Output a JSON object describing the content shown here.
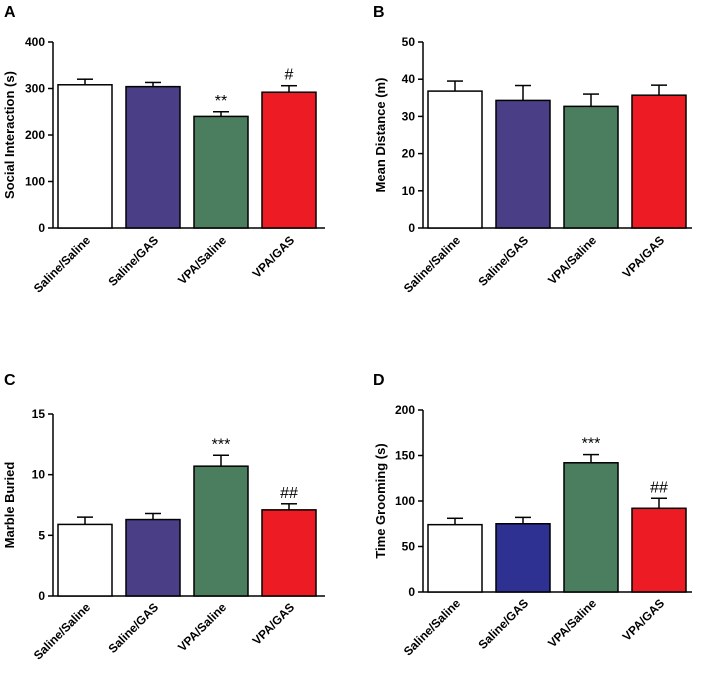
{
  "chart_data": [
    {
      "panel": "A",
      "type": "bar",
      "ylabel": "Social Interaction (s)",
      "xlabel": "",
      "ylim": [
        0,
        400
      ],
      "yticks": [
        0,
        100,
        200,
        300,
        400
      ],
      "categories": [
        "Saline/Saline",
        "Saline/GAS",
        "VPA/Saline",
        "VPA/GAS"
      ],
      "values": [
        308,
        304,
        240,
        292
      ],
      "errors": [
        12,
        9,
        10,
        14
      ],
      "annotations": [
        "",
        "",
        "**",
        "#"
      ],
      "colors": [
        "#ffffff",
        "#4a3f86",
        "#4b7d5f",
        "#ed1c24"
      ]
    },
    {
      "panel": "B",
      "type": "bar",
      "ylabel": "Mean Distance (m)",
      "xlabel": "",
      "ylim": [
        0,
        50
      ],
      "yticks": [
        0,
        10,
        20,
        30,
        40,
        50
      ],
      "categories": [
        "Saline/Saline",
        "Saline/GAS",
        "VPA/Saline",
        "VPA/GAS"
      ],
      "values": [
        36.8,
        34.3,
        32.7,
        35.7
      ],
      "errors": [
        2.7,
        4.0,
        3.3,
        2.7
      ],
      "annotations": [
        "",
        "",
        "",
        ""
      ],
      "colors": [
        "#ffffff",
        "#4a3f86",
        "#4b7d5f",
        "#ed1c24"
      ]
    },
    {
      "panel": "C",
      "type": "bar",
      "ylabel": "Marble Buried",
      "xlabel": "",
      "ylim": [
        0,
        15
      ],
      "yticks": [
        0,
        5,
        10,
        15
      ],
      "categories": [
        "Saline/Saline",
        "Saline/GAS",
        "VPA/Saline",
        "VPA/GAS"
      ],
      "values": [
        5.9,
        6.3,
        10.7,
        7.1
      ],
      "errors": [
        0.6,
        0.5,
        0.9,
        0.5
      ],
      "annotations": [
        "",
        "",
        "***",
        "##"
      ],
      "colors": [
        "#ffffff",
        "#4a3f86",
        "#4b7d5f",
        "#ed1c24"
      ]
    },
    {
      "panel": "D",
      "type": "bar",
      "ylabel": "Time Grooming (s)",
      "xlabel": "",
      "ylim": [
        0,
        200
      ],
      "yticks": [
        0,
        50,
        100,
        150,
        200
      ],
      "categories": [
        "Saline/Saline",
        "Saline/GAS",
        "VPA/Saline",
        "VPA/GAS"
      ],
      "values": [
        74,
        75,
        142,
        92
      ],
      "errors": [
        7,
        7,
        9,
        11
      ],
      "annotations": [
        "",
        "",
        "***",
        "##"
      ],
      "colors": [
        "#ffffff",
        "#2e3192",
        "#4b7d5f",
        "#ed1c24"
      ]
    }
  ]
}
